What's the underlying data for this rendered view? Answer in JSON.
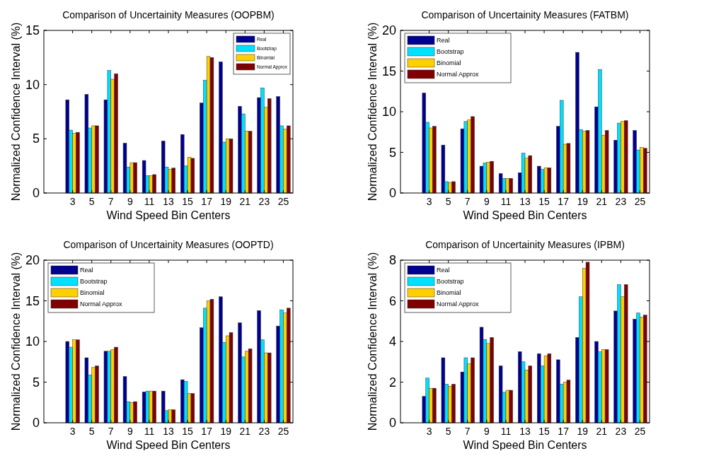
{
  "chart_data": [
    {
      "type": "bar",
      "title": "Comparison of Uncertainity Measures (OOPBM)",
      "xlabel": "Wind Speed Bin Centers",
      "ylabel": "Normalized Confidence Interval (%)",
      "x": [
        3,
        5,
        7,
        9,
        11,
        13,
        15,
        17,
        19,
        21,
        23,
        25
      ],
      "xlim": [
        0,
        26
      ],
      "xticks": [
        3,
        5,
        7,
        9,
        11,
        13,
        15,
        17,
        19,
        21,
        23,
        25
      ],
      "ylim": [
        0,
        15
      ],
      "yticks": [
        0,
        5,
        10,
        15
      ],
      "legend": "top right",
      "series": [
        {
          "name": "Real",
          "color": "#000090",
          "values": [
            8.6,
            9.1,
            8.6,
            4.6,
            3.0,
            4.8,
            5.4,
            8.3,
            12.1,
            8.0,
            8.8,
            8.9
          ]
        },
        {
          "name": "Bootstrap",
          "color": "#00e0ff",
          "values": [
            5.8,
            6.0,
            11.3,
            2.4,
            1.6,
            2.4,
            2.5,
            10.4,
            4.7,
            7.3,
            9.7,
            6.2
          ]
        },
        {
          "name": "Binomial",
          "color": "#ffd000",
          "values": [
            5.5,
            6.2,
            10.5,
            2.8,
            1.6,
            2.2,
            3.3,
            12.6,
            5.0,
            5.7,
            7.9,
            5.9
          ]
        },
        {
          "name": "Normal Approx",
          "color": "#800000",
          "values": [
            5.6,
            6.2,
            11.0,
            2.8,
            1.7,
            2.3,
            3.2,
            12.5,
            5.0,
            5.7,
            8.7,
            6.2
          ]
        }
      ]
    },
    {
      "type": "bar",
      "title": "Comparison of Uncertainity Measures (FATBM)",
      "xlabel": "Wind Speed Bin Centers",
      "ylabel": "Normalized Confidence Interval (%)",
      "x": [
        3,
        5,
        7,
        9,
        11,
        13,
        15,
        17,
        19,
        21,
        23,
        25
      ],
      "xlim": [
        0,
        26
      ],
      "xticks": [
        3,
        5,
        7,
        9,
        11,
        13,
        15,
        17,
        19,
        21,
        23,
        25
      ],
      "ylim": [
        0,
        20
      ],
      "yticks": [
        0,
        5,
        10,
        15,
        20
      ],
      "legend": "top left",
      "series": [
        {
          "name": "Real",
          "color": "#000090",
          "values": [
            12.3,
            5.9,
            7.9,
            3.3,
            2.4,
            2.5,
            3.3,
            8.2,
            17.3,
            10.6,
            6.5,
            7.7
          ]
        },
        {
          "name": "Bootstrap",
          "color": "#00e0ff",
          "values": [
            8.7,
            1.4,
            8.8,
            3.7,
            1.8,
            4.9,
            2.9,
            11.4,
            7.8,
            15.2,
            8.6,
            5.3
          ]
        },
        {
          "name": "Binomial",
          "color": "#ffd000",
          "values": [
            8.0,
            1.3,
            9.0,
            3.8,
            1.8,
            4.3,
            3.1,
            6.0,
            7.6,
            7.1,
            8.8,
            5.6
          ]
        },
        {
          "name": "Normal Approx",
          "color": "#800000",
          "values": [
            8.2,
            1.4,
            9.4,
            3.9,
            1.8,
            4.6,
            3.1,
            6.1,
            7.7,
            7.7,
            8.9,
            5.5
          ]
        }
      ]
    },
    {
      "type": "bar",
      "title": "Comparison of Uncertainity Measures (OOPTD)",
      "xlabel": "Wind Speed Bin Centers",
      "ylabel": "Normalized Confidence Interval (%)",
      "x": [
        3,
        5,
        7,
        9,
        11,
        13,
        15,
        17,
        19,
        21,
        23,
        25
      ],
      "xlim": [
        0,
        26
      ],
      "xticks": [
        3,
        5,
        7,
        9,
        11,
        13,
        15,
        17,
        19,
        21,
        23,
        25
      ],
      "ylim": [
        0,
        20
      ],
      "yticks": [
        0,
        5,
        10,
        15,
        20
      ],
      "legend": "top left",
      "series": [
        {
          "name": "Real",
          "color": "#000090",
          "values": [
            10.0,
            8.0,
            8.8,
            5.7,
            3.8,
            3.9,
            5.3,
            11.7,
            15.5,
            12.3,
            13.8,
            11.9
          ]
        },
        {
          "name": "Bootstrap",
          "color": "#00e0ff",
          "values": [
            9.3,
            5.9,
            8.8,
            2.6,
            3.9,
            1.5,
            5.1,
            14.1,
            9.9,
            8.1,
            10.2,
            13.9
          ]
        },
        {
          "name": "Binomial",
          "color": "#ffd000",
          "values": [
            10.2,
            6.8,
            9.0,
            2.5,
            3.9,
            1.6,
            3.6,
            15.0,
            10.7,
            8.8,
            8.6,
            13.5
          ]
        },
        {
          "name": "Normal Approx",
          "color": "#800000",
          "values": [
            10.2,
            7.0,
            9.3,
            2.6,
            3.9,
            1.6,
            3.6,
            15.2,
            11.1,
            9.1,
            8.6,
            14.1
          ]
        }
      ]
    },
    {
      "type": "bar",
      "title": "Comparison of Uncertainity Measures (IPBM)",
      "xlabel": "Wind Speed Bin Centers",
      "ylabel": "Normalized Confidence Interval (%)",
      "x": [
        3,
        5,
        7,
        9,
        11,
        13,
        15,
        17,
        19,
        21,
        23,
        25
      ],
      "xlim": [
        0,
        26
      ],
      "xticks": [
        3,
        5,
        7,
        9,
        11,
        13,
        15,
        17,
        19,
        21,
        23,
        25
      ],
      "ylim": [
        0,
        8
      ],
      "yticks": [
        0,
        2,
        4,
        6,
        8
      ],
      "legend": "top left",
      "series": [
        {
          "name": "Real",
          "color": "#000090",
          "values": [
            1.3,
            3.2,
            2.5,
            4.7,
            2.8,
            3.5,
            3.4,
            3.1,
            4.2,
            4.0,
            5.5,
            5.1
          ]
        },
        {
          "name": "Bootstrap",
          "color": "#00e0ff",
          "values": [
            2.2,
            1.9,
            3.2,
            4.1,
            1.5,
            3.0,
            2.8,
            1.9,
            6.2,
            3.5,
            6.8,
            5.4
          ]
        },
        {
          "name": "Binomial",
          "color": "#ffd000",
          "values": [
            1.7,
            1.8,
            2.9,
            3.9,
            1.6,
            2.6,
            3.3,
            2.0,
            7.6,
            3.6,
            6.2,
            5.2
          ]
        },
        {
          "name": "Normal Approx",
          "color": "#800000",
          "values": [
            1.7,
            1.9,
            3.2,
            4.2,
            1.6,
            2.8,
            3.4,
            2.1,
            7.9,
            3.6,
            6.8,
            5.3
          ]
        }
      ]
    }
  ]
}
